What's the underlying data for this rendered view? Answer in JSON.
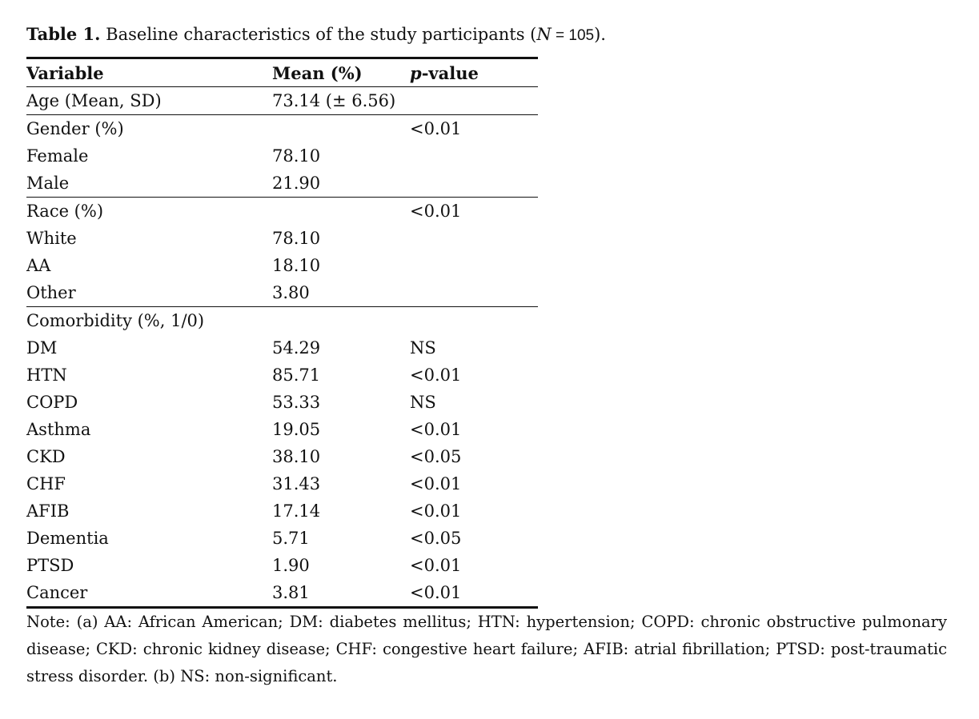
{
  "caption": {
    "label": "Table 1.",
    "text_before": " Baseline characteristics of the study participants (",
    "n_var": "N",
    "n_eq": " = 105",
    "text_after": ")."
  },
  "table": {
    "headers": {
      "variable": "Variable",
      "mean": "Mean (%)",
      "p_italic": "p",
      "p_rest": "-value"
    },
    "rows": [
      {
        "variable": "Age (Mean, SD)",
        "mean": "73.14 (± 6.56)",
        "p": "",
        "sub": false
      },
      {
        "variable": "Gender (%)",
        "mean": "",
        "p": "<0.01",
        "sub": false
      },
      {
        "variable": "Female",
        "mean": "78.10",
        "p": "",
        "sub": true
      },
      {
        "variable": "Male",
        "mean": "21.90",
        "p": "",
        "sub": true
      },
      {
        "variable": "Race (%)",
        "mean": "",
        "p": "<0.01",
        "sub": false
      },
      {
        "variable": "White",
        "mean": "78.10",
        "p": "",
        "sub": true
      },
      {
        "variable": "AA",
        "mean": "18.10",
        "p": "",
        "sub": true
      },
      {
        "variable": "Other",
        "mean": "3.80",
        "p": "",
        "sub": true
      },
      {
        "variable": "Comorbidity (%, 1/0)",
        "mean": "",
        "p": "",
        "sub": false
      },
      {
        "variable": "DM",
        "mean": "54.29",
        "p": "NS",
        "sub": true
      },
      {
        "variable": "HTN",
        "mean": "85.71",
        "p": "<0.01",
        "sub": true
      },
      {
        "variable": "COPD",
        "mean": "53.33",
        "p": "NS",
        "sub": true
      },
      {
        "variable": "Asthma",
        "mean": "19.05",
        "p": "<0.01",
        "sub": true
      },
      {
        "variable": "CKD",
        "mean": "38.10",
        "p": "<0.05",
        "sub": true
      },
      {
        "variable": "CHF",
        "mean": "31.43",
        "p": "<0.01",
        "sub": true
      },
      {
        "variable": "AFIB",
        "mean": "17.14",
        "p": "<0.01",
        "sub": true
      },
      {
        "variable": "Dementia",
        "mean": "5.71",
        "p": "<0.05",
        "sub": true
      },
      {
        "variable": "PTSD",
        "mean": "1.90",
        "p": "<0.01",
        "sub": true
      },
      {
        "variable": "Cancer",
        "mean": "3.81",
        "p": "<0.01",
        "sub": true
      }
    ]
  },
  "note": "Note: (a) AA: African American; DM: diabetes mellitus; HTN: hypertension; COPD: chronic obstructive pulmonary disease; CKD: chronic kidney disease; CHF: congestive heart failure; AFIB: atrial fibrillation; PTSD: post-traumatic stress disorder. (b) NS: non-significant."
}
